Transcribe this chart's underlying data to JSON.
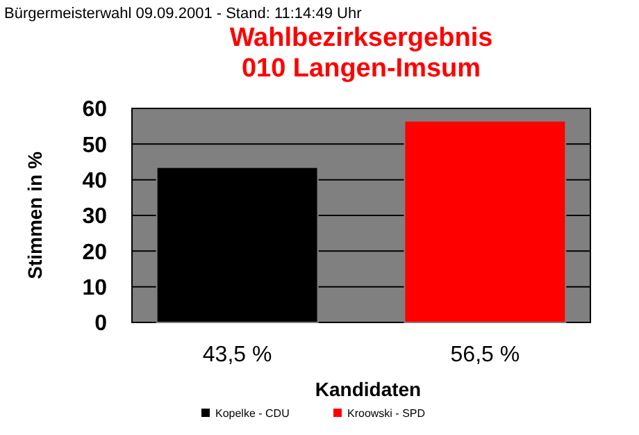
{
  "chart_data": {
    "type": "bar",
    "title": "Wahlbezirksergebnis",
    "subtitle": "010 Langen-Imsum",
    "annotations": [
      "Bürgermeisterwahl 09.09.2001 - Stand: 11:14:49 Uhr"
    ],
    "xlabel": "Kandidaten",
    "ylabel": "Stimmen in %",
    "categories": [
      null,
      null
    ],
    "series": [
      {
        "name": "Kopelke - CDU",
        "color": "#000000",
        "values": [
          43.5,
          null
        ],
        "value_labels": [
          "43,5 %",
          null
        ]
      },
      {
        "name": "Kroowski - SPD",
        "color": "#ff0000",
        "values": [
          null,
          56.5
        ],
        "value_labels": [
          null,
          "56,5 %"
        ]
      }
    ],
    "ylim": [
      0,
      60
    ],
    "yticks": [
      0,
      10,
      20,
      30,
      40,
      50,
      60
    ],
    "grid": "y",
    "legend": "bottom"
  }
}
